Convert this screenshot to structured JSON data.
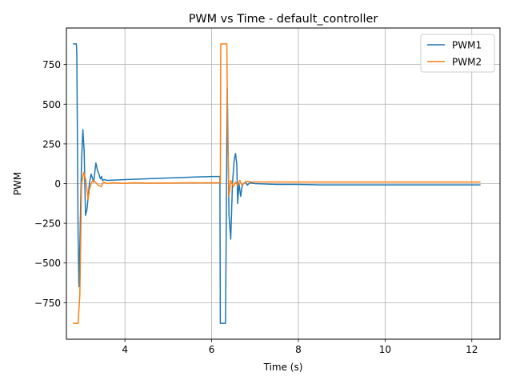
{
  "chart_data": {
    "type": "line",
    "title": "PWM vs Time - default_controller",
    "xlabel": "Time (s)",
    "ylabel": "PWM",
    "xlim": [
      2.65,
      12.65
    ],
    "ylim": [
      -980,
      980
    ],
    "xticks": [
      4,
      6,
      8,
      10,
      12
    ],
    "yticks": [
      -750,
      -500,
      -250,
      0,
      250,
      500,
      750
    ],
    "grid": true,
    "legend_position": "top-right",
    "series": [
      {
        "name": "PWM1",
        "color": "#1f77b4",
        "x": [
          2.8,
          2.88,
          2.89,
          2.92,
          2.94,
          2.96,
          3.0,
          3.03,
          3.06,
          3.09,
          3.12,
          3.14,
          3.18,
          3.22,
          3.28,
          3.33,
          3.36,
          3.4,
          3.42,
          3.44,
          3.46,
          3.48,
          3.52,
          3.6,
          4.0,
          4.5,
          5.0,
          5.5,
          6.0,
          6.19,
          6.2,
          6.32,
          6.33,
          6.36,
          6.38,
          6.4,
          6.44,
          6.48,
          6.52,
          6.55,
          6.58,
          6.6,
          6.63,
          6.67,
          6.7,
          6.73,
          6.78,
          6.82,
          6.88,
          7.0,
          7.5,
          8.0,
          8.5,
          9.0,
          10.0,
          11.0,
          12.2
        ],
        "y": [
          880,
          880,
          820,
          -320,
          -650,
          -400,
          150,
          340,
          200,
          -200,
          -170,
          -120,
          0,
          60,
          10,
          130,
          90,
          60,
          40,
          30,
          45,
          20,
          25,
          20,
          25,
          30,
          35,
          40,
          45,
          45,
          -880,
          -880,
          -500,
          600,
          200,
          -200,
          -350,
          0,
          150,
          190,
          120,
          -125,
          0,
          -80,
          -20,
          0,
          10,
          -10,
          5,
          0,
          -5,
          -5,
          -8,
          -8,
          -8,
          -8,
          -8
        ]
      },
      {
        "name": "PWM2",
        "color": "#ff7f0e",
        "x": [
          2.8,
          2.9,
          2.92,
          2.96,
          3.0,
          3.05,
          3.08,
          3.1,
          3.15,
          3.18,
          3.22,
          3.26,
          3.32,
          3.38,
          3.45,
          3.5,
          3.6,
          3.7,
          4.0,
          4.2,
          4.5,
          5.0,
          5.5,
          6.0,
          6.2,
          6.21,
          6.35,
          6.37,
          6.4,
          6.44,
          6.5,
          6.55,
          6.6,
          6.65,
          6.7,
          6.8,
          6.9,
          7.0,
          7.5,
          8.0,
          9.0,
          10.0,
          11.0,
          12.2
        ],
        "y": [
          -880,
          -880,
          -880,
          -700,
          0,
          70,
          40,
          20,
          -100,
          -40,
          0,
          20,
          10,
          -10,
          -20,
          10,
          0,
          5,
          2,
          5,
          3,
          4,
          5,
          5,
          5,
          880,
          880,
          300,
          -80,
          20,
          -20,
          10,
          -10,
          20,
          -10,
          15,
          10,
          10,
          10,
          10,
          10,
          10,
          10,
          10
        ]
      }
    ]
  }
}
